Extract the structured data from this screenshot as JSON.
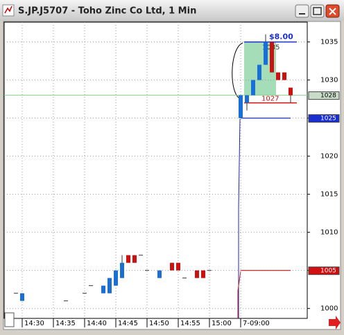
{
  "chart_data": {
    "type": "candlestick",
    "title": "S.JP.J5707 - Toho Zinc Co Ltd, 1 Min",
    "categories": [
      null,
      "14:30",
      null,
      null,
      null,
      null,
      "14:35",
      null,
      null,
      null,
      null,
      "14:40",
      null,
      null,
      null,
      null,
      "14:45",
      null,
      null,
      null,
      null,
      "14:50",
      null,
      null,
      null,
      null,
      "14:55",
      null,
      null,
      null,
      null,
      "15:00",
      null,
      null,
      null,
      null,
      "7-09:00",
      null,
      null,
      null,
      null,
      null,
      null,
      null,
      null
    ],
    "open": [
      1002,
      1001,
      null,
      null,
      null,
      null,
      null,
      null,
      1001,
      null,
      null,
      1002,
      1003,
      null,
      1002,
      1002,
      1003,
      1004,
      1007,
      1007,
      1007,
      1005,
      null,
      1004,
      null,
      1006,
      1006,
      1004,
      null,
      1005,
      1005,
      1005,
      null,
      null,
      null,
      null,
      1025,
      1027,
      1028,
      1030,
      1032,
      1035,
      1031,
      1031,
      1029
    ],
    "high": [
      1002,
      1002,
      null,
      null,
      null,
      null,
      null,
      null,
      1001,
      null,
      null,
      1002,
      1003,
      null,
      1003,
      1004,
      1005,
      1007,
      1007,
      1007,
      1007,
      1005,
      null,
      1005,
      null,
      1006,
      1006,
      1004,
      null,
      1005,
      1005,
      1005,
      null,
      null,
      null,
      null,
      1028,
      1028,
      1030,
      1032,
      1036,
      1035,
      1031,
      1031,
      1029
    ],
    "low": [
      1002,
      1001,
      null,
      null,
      null,
      null,
      null,
      null,
      1001,
      null,
      null,
      1002,
      1003,
      null,
      1002,
      1002,
      1003,
      1004,
      1006,
      1006,
      1007,
      1005,
      null,
      1004,
      null,
      1005,
      1005,
      1004,
      null,
      1004,
      1004,
      1005,
      null,
      null,
      null,
      null,
      1025,
      1026,
      1028,
      1030,
      1032,
      1031,
      1030,
      1030,
      1027
    ],
    "close": [
      1002,
      1002,
      null,
      null,
      null,
      null,
      null,
      null,
      1001,
      null,
      null,
      1002,
      1003,
      null,
      1003,
      1004,
      1005,
      1006,
      1006,
      1006,
      1007,
      1005,
      null,
      1005,
      null,
      1005,
      1005,
      1004,
      null,
      1004,
      1004,
      1005,
      null,
      null,
      null,
      null,
      1028,
      1028,
      1030,
      1032,
      1035,
      1031,
      1030,
      1030,
      1028
    ],
    "up_color": "#1a6fd6",
    "down_color": "#cc1111",
    "ylim": [
      998.7,
      1037.6
    ],
    "yticks": [
      1000,
      1005,
      1010,
      1015,
      1020,
      1025,
      1030,
      1035
    ],
    "grid": true,
    "zone": [
      1028,
      1035
    ],
    "target": {
      "value": 1035,
      "label": "1035",
      "note": "$8.00"
    },
    "stop": {
      "value": 1027,
      "label": "1027"
    },
    "price_tags": [
      {
        "value": 1028,
        "color": "#c8dcc8"
      },
      {
        "value": 1025,
        "color": "#1a2fd0"
      },
      {
        "value": 1005,
        "color": "#d01010"
      }
    ]
  }
}
